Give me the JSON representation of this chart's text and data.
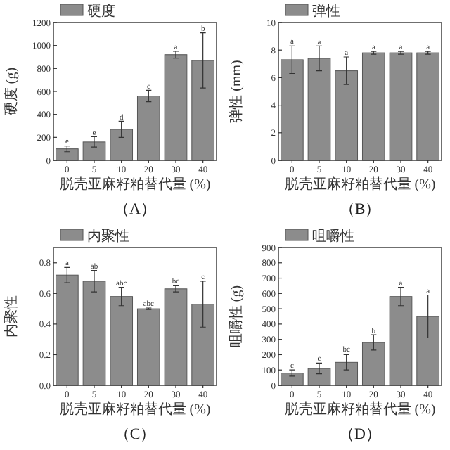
{
  "chart_data": [
    {
      "type": "bar",
      "categories": [
        "0",
        "5",
        "10",
        "20",
        "30",
        "40"
      ],
      "xlabel": "脱壳亚麻籽粕替代量 (%)",
      "ylabel": "硬度 (g)",
      "ylim": [
        0,
        1200
      ],
      "yticks": [
        0,
        200,
        400,
        600,
        800,
        1000,
        1200
      ],
      "legend": "top left",
      "series": [
        {
          "name": "硬度",
          "color": "#8c8c8c",
          "values": [
            100,
            160,
            270,
            560,
            920,
            870
          ],
          "errors": [
            25,
            45,
            70,
            50,
            30,
            240
          ]
        }
      ],
      "annotations": [
        {
          "text": "e",
          "x": "0",
          "y": 130
        },
        {
          "text": "e",
          "x": "5",
          "y": 205
        },
        {
          "text": "d",
          "x": "10",
          "y": 335
        },
        {
          "text": "c",
          "x": "20",
          "y": 605
        },
        {
          "text": "a",
          "x": "30",
          "y": 950
        },
        {
          "text": "b",
          "x": "40",
          "y": 1110
        },
        "（A）"
      ]
    },
    {
      "type": "bar",
      "categories": [
        "0",
        "5",
        "10",
        "20",
        "30",
        "40"
      ],
      "xlabel": "脱壳亚麻籽粕替代量 (%)",
      "ylabel": "弹性 (mm)",
      "ylim": [
        0,
        10
      ],
      "yticks": [
        0,
        2,
        4,
        6,
        8,
        10
      ],
      "legend": "top left",
      "series": [
        {
          "name": "弹性",
          "color": "#8c8c8c",
          "values": [
            7.3,
            7.4,
            6.5,
            7.8,
            7.8,
            7.8
          ],
          "errors": [
            1.0,
            0.9,
            1.0,
            0.1,
            0.1,
            0.1
          ]
        }
      ],
      "annotations": [
        {
          "text": "a",
          "x": "0",
          "y": 8.3
        },
        {
          "text": "a",
          "x": "5",
          "y": 8.25
        },
        {
          "text": "a",
          "x": "10",
          "y": 7.5
        },
        {
          "text": "a",
          "x": "20",
          "y": 7.9
        },
        {
          "text": "a",
          "x": "30",
          "y": 7.9
        },
        {
          "text": "a",
          "x": "40",
          "y": 7.9
        },
        "（B）"
      ]
    },
    {
      "type": "bar",
      "categories": [
        "0",
        "5",
        "10",
        "20",
        "30",
        "40"
      ],
      "xlabel": "脱壳亚麻籽粕替代量 (%)",
      "ylabel": "内聚性",
      "ylim": [
        0,
        0.9
      ],
      "yticks": [
        {
          "value": 0,
          "label": "0.0"
        },
        0.2,
        0.4,
        0.6,
        0.8
      ],
      "legend": "top left",
      "series": [
        {
          "name": "内聚性",
          "color": "#8c8c8c",
          "values": [
            0.72,
            0.68,
            0.58,
            0.5,
            0.63,
            0.53
          ],
          "errors": [
            0.05,
            0.07,
            0.06,
            0.005,
            0.02,
            0.15
          ]
        }
      ],
      "annotations": [
        {
          "text": "a",
          "x": "0",
          "y": 0.77
        },
        {
          "text": "ab",
          "x": "5",
          "y": 0.75
        },
        {
          "text": "abc",
          "x": "10",
          "y": 0.64
        },
        {
          "text": "abc",
          "x": "20",
          "y": 0.505
        },
        {
          "text": "bc",
          "x": "30",
          "y": 0.65
        },
        {
          "text": "c",
          "x": "40",
          "y": 0.68
        },
        "（C）"
      ]
    },
    {
      "type": "bar",
      "categories": [
        "0",
        "5",
        "10",
        "20",
        "30",
        "40"
      ],
      "xlabel": "脱壳亚麻籽粕替代量 (%)",
      "ylabel": "咀嚼性 (g)",
      "ylim": [
        0,
        900
      ],
      "yticks": [
        0,
        100,
        200,
        300,
        400,
        500,
        600,
        700,
        800,
        900
      ],
      "legend": "top left",
      "series": [
        {
          "name": "咀嚼性",
          "color": "#8c8c8c",
          "values": [
            80,
            110,
            150,
            280,
            580,
            450
          ],
          "errors": [
            20,
            35,
            50,
            50,
            60,
            140
          ]
        }
      ],
      "annotations": [
        {
          "text": "c",
          "x": "0",
          "y": 100
        },
        {
          "text": "c",
          "x": "5",
          "y": 145
        },
        {
          "text": "bc",
          "x": "10",
          "y": 205
        },
        {
          "text": "b",
          "x": "20",
          "y": 325
        },
        {
          "text": "a",
          "x": "30",
          "y": 640
        },
        {
          "text": "a",
          "x": "40",
          "y": 590
        },
        "（D）"
      ]
    }
  ]
}
